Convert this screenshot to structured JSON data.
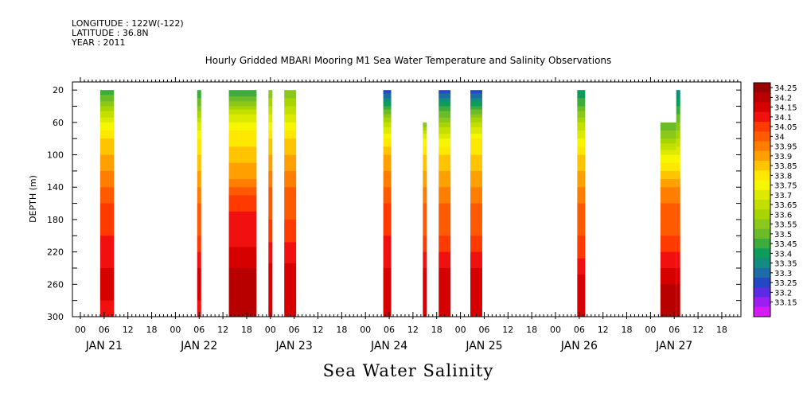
{
  "header": {
    "longitude": "LONGITUDE : 122W(-122)",
    "latitude": "LATITUDE : 36.8N",
    "year": "YEAR : 2011"
  },
  "chart_data": {
    "type": "heatmap",
    "title": "Hourly Gridded MBARI Mooring M1 Sea Water Temperature and Salinity Observations",
    "footer": "Sea Water Salinity",
    "ylabel": "DEPTH (m)",
    "ylim": [
      300,
      10
    ],
    "y_ticks": [
      20,
      60,
      100,
      140,
      180,
      220,
      260,
      300
    ],
    "x_range_hours": [
      0,
      176
    ],
    "x_tick_labels": [
      "00",
      "06",
      "12",
      "18",
      "00",
      "06",
      "12",
      "18",
      "00",
      "06",
      "12",
      "18",
      "00",
      "06",
      "12",
      "18",
      "00",
      "06",
      "12",
      "18",
      "00",
      "06",
      "12",
      "18",
      "00",
      "06",
      "12",
      "18"
    ],
    "day_labels": [
      "JAN 21",
      "JAN 22",
      "JAN 23",
      "JAN 24",
      "JAN 25",
      "JAN 26",
      "JAN 27"
    ],
    "colorbar_levels": [
      34.25,
      34.2,
      34.15,
      34.1,
      34.05,
      34,
      33.95,
      33.9,
      33.85,
      33.8,
      33.75,
      33.7,
      33.65,
      33.6,
      33.55,
      33.5,
      33.45,
      33.4,
      33.35,
      33.3,
      33.25,
      33.2,
      33.15
    ],
    "colorbar_colors": [
      "#9a0000",
      "#b80000",
      "#d60000",
      "#f01010",
      "#ff3a00",
      "#ff5a00",
      "#ff7e00",
      "#ffa000",
      "#ffc400",
      "#ffe800",
      "#f6f600",
      "#dcea00",
      "#c3df00",
      "#a8d400",
      "#8cc81c",
      "#6cbc28",
      "#3eac3c",
      "#0e9c5c",
      "#138c80",
      "#1d6ca6",
      "#2448c4",
      "#5c2ce2",
      "#9e1ef2",
      "#d61bf2"
    ],
    "columns": [
      {
        "start": 5,
        "end": 8.5,
        "top": 20,
        "profile": [
          [
            20,
            33.45
          ],
          [
            40,
            33.6
          ],
          [
            60,
            33.75
          ],
          [
            80,
            33.85
          ],
          [
            100,
            33.9
          ],
          [
            120,
            33.95
          ],
          [
            140,
            34.0
          ],
          [
            160,
            34.05
          ],
          [
            200,
            34.1
          ],
          [
            240,
            34.15
          ],
          [
            260,
            34.2
          ],
          [
            280,
            34.15
          ],
          [
            300,
            34.12
          ]
        ]
      },
      {
        "start": 29.5,
        "end": 30.5,
        "top": 20,
        "profile": [
          [
            20,
            33.45
          ],
          [
            40,
            33.55
          ],
          [
            60,
            33.7
          ],
          [
            80,
            33.8
          ],
          [
            100,
            33.85
          ],
          [
            120,
            33.9
          ],
          [
            140,
            33.95
          ],
          [
            160,
            34.0
          ],
          [
            200,
            34.05
          ],
          [
            220,
            34.1
          ],
          [
            240,
            34.15
          ],
          [
            260,
            34.2
          ],
          [
            280,
            34.15
          ],
          [
            300,
            34.12
          ]
        ]
      },
      {
        "start": 37.5,
        "end": 44.5,
        "top": 20,
        "profile": [
          [
            20,
            33.45
          ],
          [
            35,
            33.55
          ],
          [
            50,
            33.7
          ],
          [
            70,
            33.8
          ],
          [
            90,
            33.85
          ],
          [
            110,
            33.9
          ],
          [
            130,
            33.95
          ],
          [
            150,
            34.05
          ],
          [
            170,
            34.1
          ],
          [
            200,
            34.12
          ],
          [
            240,
            34.2
          ],
          [
            260,
            34.25
          ],
          [
            300,
            34.2
          ]
        ]
      },
      {
        "start": 47.5,
        "end": 48.5,
        "top": 20,
        "profile": [
          [
            20,
            33.55
          ],
          [
            40,
            33.65
          ],
          [
            60,
            33.75
          ],
          [
            80,
            33.85
          ],
          [
            100,
            33.9
          ],
          [
            120,
            33.95
          ],
          [
            140,
            34.0
          ],
          [
            180,
            34.05
          ],
          [
            220,
            34.12
          ],
          [
            260,
            34.2
          ],
          [
            300,
            34.15
          ]
        ]
      },
      {
        "start": 51.5,
        "end": 54.5,
        "top": 20,
        "profile": [
          [
            20,
            33.55
          ],
          [
            40,
            33.65
          ],
          [
            60,
            33.75
          ],
          [
            80,
            33.85
          ],
          [
            100,
            33.9
          ],
          [
            120,
            33.95
          ],
          [
            140,
            34.0
          ],
          [
            180,
            34.05
          ],
          [
            220,
            34.12
          ],
          [
            260,
            34.2
          ],
          [
            300,
            34.15
          ]
        ]
      },
      {
        "start": 76.5,
        "end": 78.5,
        "top": 20,
        "profile": [
          [
            20,
            33.25
          ],
          [
            30,
            33.35
          ],
          [
            40,
            33.45
          ],
          [
            60,
            33.65
          ],
          [
            80,
            33.8
          ],
          [
            100,
            33.9
          ],
          [
            120,
            33.95
          ],
          [
            140,
            34.0
          ],
          [
            160,
            34.05
          ],
          [
            200,
            34.1
          ],
          [
            240,
            34.15
          ],
          [
            260,
            34.2
          ],
          [
            300,
            34.15
          ]
        ]
      },
      {
        "start": 86.5,
        "end": 87.5,
        "top": 60,
        "profile": [
          [
            60,
            33.55
          ],
          [
            80,
            33.75
          ],
          [
            100,
            33.85
          ],
          [
            120,
            33.9
          ],
          [
            140,
            33.95
          ],
          [
            160,
            34.0
          ],
          [
            200,
            34.05
          ],
          [
            240,
            34.15
          ],
          [
            260,
            34.2
          ],
          [
            300,
            34.15
          ]
        ]
      },
      {
        "start": 90.5,
        "end": 93.5,
        "top": 20,
        "profile": [
          [
            20,
            33.25
          ],
          [
            30,
            33.35
          ],
          [
            40,
            33.45
          ],
          [
            60,
            33.6
          ],
          [
            80,
            33.75
          ],
          [
            100,
            33.85
          ],
          [
            120,
            33.9
          ],
          [
            140,
            33.95
          ],
          [
            160,
            34.0
          ],
          [
            200,
            34.05
          ],
          [
            240,
            34.15
          ],
          [
            260,
            34.2
          ],
          [
            300,
            34.15
          ]
        ]
      },
      {
        "start": 98.5,
        "end": 101.5,
        "top": 20,
        "profile": [
          [
            20,
            33.25
          ],
          [
            30,
            33.35
          ],
          [
            40,
            33.45
          ],
          [
            60,
            33.65
          ],
          [
            80,
            33.8
          ],
          [
            100,
            33.85
          ],
          [
            120,
            33.9
          ],
          [
            140,
            33.95
          ],
          [
            160,
            34.0
          ],
          [
            200,
            34.05
          ],
          [
            240,
            34.15
          ],
          [
            260,
            34.2
          ],
          [
            300,
            34.15
          ]
        ]
      },
      {
        "start": 125.5,
        "end": 127.5,
        "top": 20,
        "profile": [
          [
            20,
            33.4
          ],
          [
            40,
            33.5
          ],
          [
            60,
            33.65
          ],
          [
            80,
            33.75
          ],
          [
            100,
            33.85
          ],
          [
            120,
            33.9
          ],
          [
            140,
            33.95
          ],
          [
            160,
            34.0
          ],
          [
            200,
            34.05
          ],
          [
            240,
            34.12
          ],
          [
            260,
            34.2
          ],
          [
            300,
            34.15
          ]
        ]
      },
      {
        "start": 146.5,
        "end": 150.5,
        "top": 60,
        "profile": [
          [
            60,
            33.5
          ],
          [
            80,
            33.6
          ],
          [
            100,
            33.75
          ],
          [
            120,
            33.85
          ],
          [
            140,
            33.95
          ],
          [
            160,
            34.0
          ],
          [
            200,
            34.05
          ],
          [
            220,
            34.1
          ],
          [
            240,
            34.15
          ],
          [
            260,
            34.2
          ],
          [
            300,
            34.2
          ]
        ]
      },
      {
        "start": 150.5,
        "end": 151.5,
        "top": 20,
        "profile": [
          [
            20,
            33.35
          ],
          [
            40,
            33.45
          ],
          [
            60,
            33.55
          ],
          [
            80,
            33.65
          ],
          [
            100,
            33.75
          ],
          [
            120,
            33.85
          ],
          [
            140,
            33.95
          ],
          [
            160,
            34.0
          ],
          [
            200,
            34.05
          ],
          [
            220,
            34.1
          ],
          [
            240,
            34.15
          ],
          [
            260,
            34.2
          ],
          [
            300,
            34.2
          ]
        ]
      }
    ]
  }
}
